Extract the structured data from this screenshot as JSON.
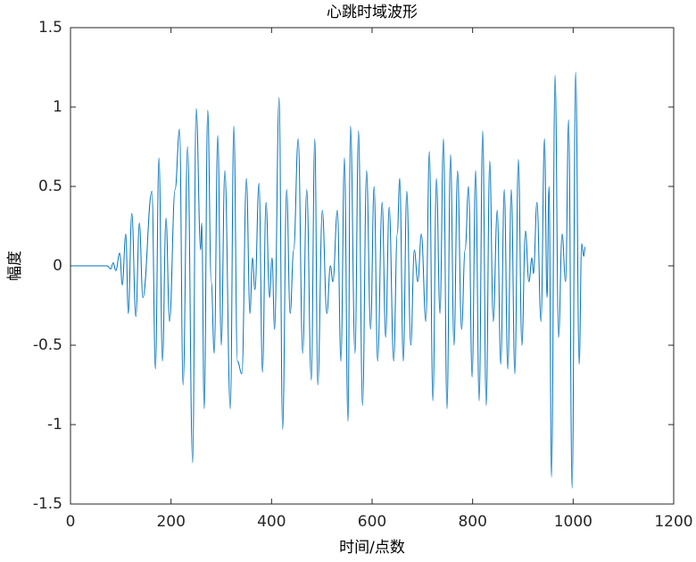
{
  "chart_data": {
    "type": "line",
    "title": "心跳时域波形",
    "x_label": "时间/点数",
    "y_label": "幅度",
    "xlim": [
      0,
      1200
    ],
    "xticks": [
      0,
      200,
      400,
      600,
      800,
      1000,
      1200
    ],
    "ylim": [
      -1.5,
      1.5
    ],
    "yticks": [
      -1.5,
      -1,
      -0.5,
      0,
      0.5,
      1,
      1.5
    ],
    "grid": false,
    "series": [
      {
        "name": "心跳",
        "color": "#0072bd",
        "x": [
          0,
          73,
          80,
          85,
          90,
          98,
          103,
          110,
          115,
          122,
          130,
          137,
          144,
          162,
          169,
          176,
          183,
          190,
          197,
          208,
          217,
          224,
          233,
          243,
          250,
          259,
          261,
          266,
          273,
          280,
          286,
          293,
          300,
          307,
          318,
          325,
          332,
          341,
          350,
          357,
          362,
          367,
          375,
          382,
          389,
          396,
          401,
          406,
          415,
          422,
          430,
          437,
          444,
          453,
          462,
          470,
          479,
          486,
          492,
          501,
          510,
          517,
          522,
          531,
          538,
          545,
          552,
          557,
          566,
          573,
          581,
          589,
          597,
          604,
          611,
          620,
          627,
          634,
          643,
          650,
          655,
          662,
          669,
          677,
          684,
          691,
          698,
          707,
          714,
          721,
          728,
          735,
          742,
          749,
          756,
          763,
          770,
          778,
          785,
          792,
          799,
          806,
          813,
          820,
          827,
          834,
          841,
          849,
          856,
          863,
          870,
          877,
          884,
          891,
          898,
          905,
          912,
          918,
          921,
          928,
          936,
          943,
          948,
          952,
          957,
          964,
          971,
          978,
          985,
          991,
          998,
          1005,
          1012,
          1017,
          1021,
          1024
        ],
        "values": [
          0,
          0,
          -0.02,
          0.02,
          -0.03,
          0.08,
          -0.12,
          0.2,
          -0.3,
          0.33,
          -0.32,
          0.27,
          -0.2,
          0.47,
          -0.65,
          0.68,
          -0.6,
          0.3,
          -0.35,
          0.48,
          0.86,
          -0.75,
          0.75,
          -1.24,
          0.99,
          0.1,
          0.27,
          -0.9,
          0.98,
          -0.1,
          -0.55,
          0.82,
          -0.5,
          0.6,
          -0.9,
          0.88,
          -0.6,
          -0.68,
          0.55,
          -0.3,
          0.05,
          -0.15,
          0.52,
          -0.67,
          0.4,
          -0.2,
          0.05,
          -0.4,
          1.06,
          -1.03,
          0.48,
          -0.3,
          0.1,
          0.8,
          -0.55,
          0.48,
          -0.72,
          0.8,
          -0.75,
          0.35,
          -0.3,
          0,
          -0.1,
          0.35,
          -0.6,
          0.68,
          -0.98,
          0.88,
          -0.55,
          0.85,
          -0.88,
          0.6,
          -0.4,
          0.5,
          -0.6,
          0.4,
          -0.45,
          0.37,
          -0.6,
          0.2,
          0.55,
          -0.6,
          0.47,
          -0.5,
          0.1,
          -0.1,
          0.2,
          -0.35,
          0.72,
          -0.85,
          0.55,
          -0.3,
          0.8,
          -0.9,
          0.7,
          -0.5,
          0.6,
          -0.4,
          0.1,
          0.5,
          -0.7,
          0.6,
          -0.85,
          0.85,
          -0.88,
          0.66,
          -0.35,
          0.35,
          -0.62,
          0.48,
          -0.65,
          0.48,
          -0.68,
          0.67,
          -0.5,
          0.22,
          -0.1,
          0.05,
          -0.05,
          0.4,
          -0.35,
          0.8,
          -0.2,
          0.5,
          -1.33,
          1.2,
          -0.45,
          0.2,
          -0.1,
          0.92,
          -1.4,
          1.22,
          -0.62,
          0.14,
          0.06,
          0.12
        ]
      }
    ]
  }
}
